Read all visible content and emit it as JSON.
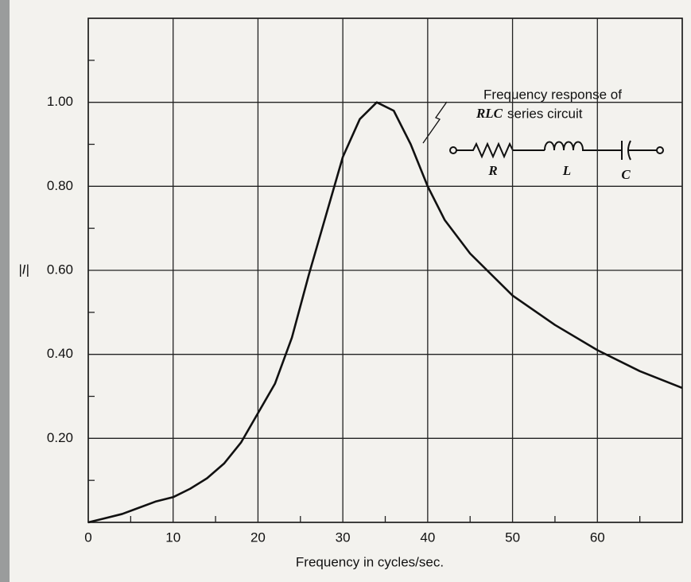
{
  "chart_data": {
    "type": "line",
    "xlabel": "Frequency in cycles/sec.",
    "ylabel": "|I|",
    "annotation": {
      "line1": "Frequency response of",
      "emphasis": "RLC",
      "line2": "series circuit"
    },
    "circuit_labels": [
      "R",
      "L",
      "C"
    ],
    "x": [
      0,
      2,
      4,
      6,
      8,
      10,
      12,
      14,
      16,
      18,
      20,
      22,
      24,
      26,
      28,
      30,
      32,
      34,
      36,
      38,
      40,
      42,
      45,
      50,
      55,
      60,
      65,
      70
    ],
    "series": [
      {
        "color": "#111111",
        "values": [
          0,
          0.01,
          0.02,
          0.035,
          0.05,
          0.06,
          0.08,
          0.105,
          0.14,
          0.19,
          0.26,
          0.33,
          0.44,
          0.59,
          0.73,
          0.87,
          0.96,
          1.0,
          0.98,
          0.9,
          0.8,
          0.72,
          0.64,
          0.54,
          0.47,
          0.41,
          0.36,
          0.32
        ]
      }
    ],
    "xlim": [
      0,
      70
    ],
    "ylim": [
      0,
      1.2
    ],
    "xticks": [
      0,
      10,
      20,
      30,
      40,
      50,
      60
    ],
    "yticks": [
      {
        "value": 0.2,
        "label": "0.20"
      },
      {
        "value": 0.4,
        "label": "0.40"
      },
      {
        "value": 0.6,
        "label": "0.60"
      },
      {
        "value": 0.8,
        "label": "0.80"
      },
      {
        "value": 1.0,
        "label": "1.00"
      }
    ],
    "x_minor_ticks": [
      5,
      15,
      25,
      35,
      45,
      55,
      65
    ],
    "y_minor_ticks": [
      0.1,
      0.3,
      0.5,
      0.7,
      0.9,
      1.1
    ],
    "grid": true
  }
}
